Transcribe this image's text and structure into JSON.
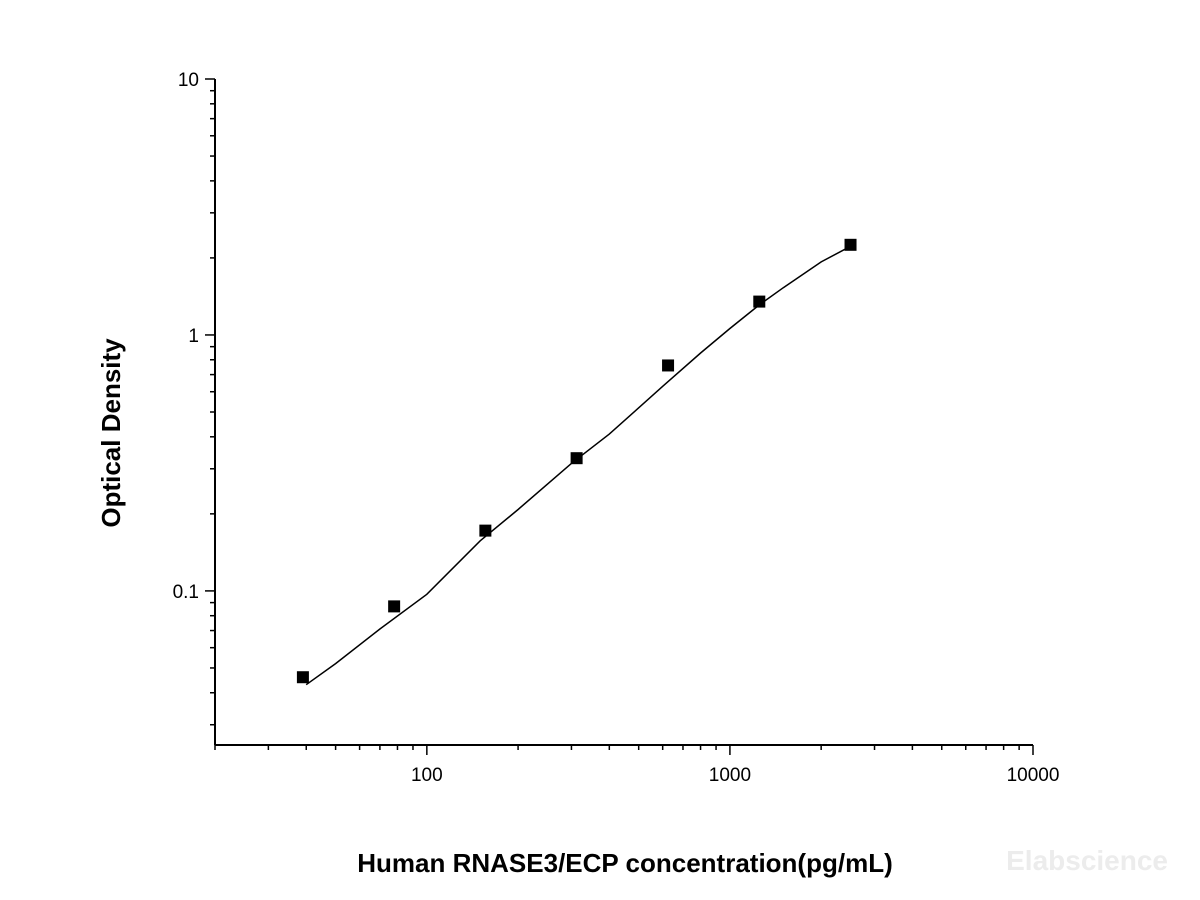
{
  "chart_data": {
    "type": "scatter",
    "title": "",
    "xlabel": "Human RNASE3/ECP concentration(pg/mL)",
    "ylabel": "Optical Density",
    "x_scale": "log",
    "y_scale": "log",
    "xlim": [
      20,
      10000
    ],
    "ylim": [
      0.025,
      10
    ],
    "x_ticks": [
      100,
      1000,
      10000
    ],
    "x_tick_labels": [
      "100",
      "1000",
      "10000"
    ],
    "y_ticks": [
      0.1,
      1,
      10
    ],
    "y_tick_labels": [
      "0.1",
      "1",
      "10"
    ],
    "grid": false,
    "legend": "none",
    "series": [
      {
        "marker": "square",
        "color": "#000000",
        "x": [
          39,
          78,
          156,
          312,
          625,
          1250,
          2500
        ],
        "y": [
          0.046,
          0.087,
          0.172,
          0.33,
          0.76,
          1.35,
          2.25
        ]
      }
    ],
    "fit_curve": {
      "type": "4PL",
      "color": "#000000",
      "x": [
        40,
        50,
        70,
        100,
        150,
        200,
        300,
        400,
        600,
        800,
        1000,
        1250,
        1500,
        2000,
        2500
      ],
      "y": [
        0.043,
        0.052,
        0.071,
        0.097,
        0.157,
        0.208,
        0.315,
        0.41,
        0.63,
        0.85,
        1.06,
        1.31,
        1.53,
        1.93,
        2.22
      ]
    }
  },
  "watermark": "Elabscience"
}
